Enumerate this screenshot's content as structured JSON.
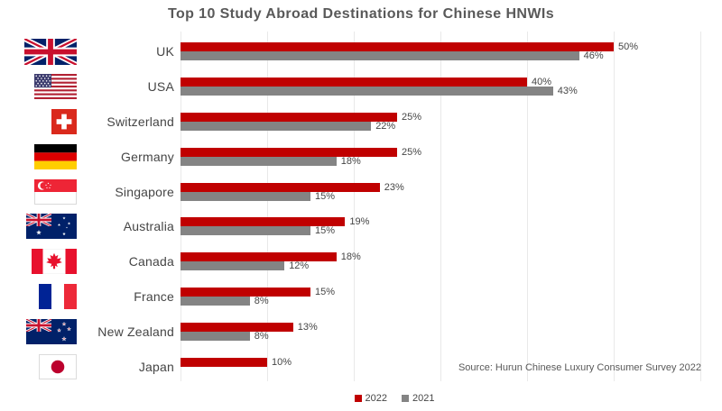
{
  "title": "Top 10 Study Abroad Destinations for Chinese HNWIs",
  "source_note": "Source: Hurun Chinese Luxury Consumer Survey 2022",
  "colors": {
    "accent_red": "#C00000",
    "accent_gray": "#848484",
    "gridline": "#E9E9E9",
    "text": "#595959"
  },
  "chart_data": {
    "type": "bar",
    "orientation": "horizontal",
    "title": "Top 10 Study Abroad Destinations for Chinese HNWIs",
    "categories": [
      "UK",
      "USA",
      "Switzerland",
      "Germany",
      "Singapore",
      "Australia",
      "Canada",
      "France",
      "New Zealand",
      "Japan"
    ],
    "series": [
      {
        "name": "2022",
        "color": "#C00000",
        "values": [
          50,
          40,
          25,
          25,
          23,
          19,
          18,
          15,
          13,
          10
        ]
      },
      {
        "name": "2021",
        "color": "#848484",
        "values": [
          46,
          43,
          22,
          18,
          15,
          15,
          12,
          8,
          8,
          null
        ]
      }
    ],
    "value_suffix": "%",
    "xlim": [
      0,
      60
    ],
    "gridline_interval": 10,
    "grid": "vertical-light",
    "legend_position": "bottom-center",
    "flag_icons": [
      "uk-flag",
      "usa-flag",
      "switzerland-flag",
      "germany-flag",
      "singapore-flag",
      "australia-flag",
      "canada-flag",
      "france-flag",
      "new-zealand-flag",
      "japan-flag"
    ]
  }
}
